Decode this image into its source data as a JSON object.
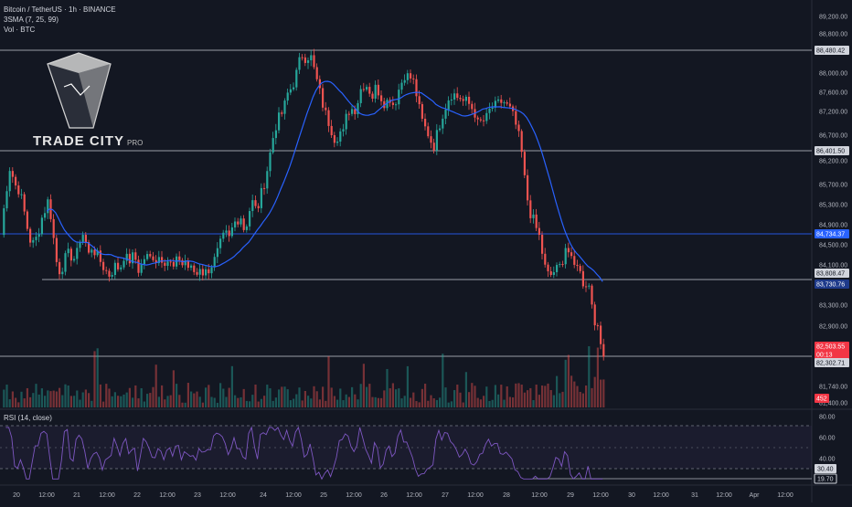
{
  "header": {
    "title": "Bitcoin / TetherUS · 1h · BINANCE",
    "indicator_sma": "3SMA (7, 25, 99)",
    "indicator_vol": "Vol · BTC",
    "rsi_label": "RSI (14, close)"
  },
  "logo": {
    "name": "TRADE CITY",
    "suffix": "PRO"
  },
  "colors": {
    "background": "#131722",
    "up": "#26a69a",
    "down": "#ef5350",
    "sma": "#2962ff",
    "rsi": "#7e57c2",
    "grid_text": "#b2b5be"
  },
  "price_axis": {
    "ticks": [
      "89,200.00",
      "88,800.00",
      "88,000.00",
      "87,600.00",
      "87,200.00",
      "86,700.00",
      "86,200.00",
      "85,700.00",
      "85,300.00",
      "84,900.00",
      "84,500.00",
      "84,100.00",
      "83,300.00",
      "82,900.00",
      "81,740.00",
      "81,400.00"
    ],
    "markers": [
      {
        "label": "88,480.42",
        "style": "gray",
        "price": 88480.42
      },
      {
        "label": "86,401.50",
        "style": "gray",
        "price": 86401.5
      },
      {
        "label": "84,734.37",
        "style": "blue",
        "price": 84734.37
      },
      {
        "label": "83,808.47",
        "style": "gray",
        "price": 83808.47
      },
      {
        "label": "83,730.76",
        "style": "navy",
        "price": 83730.76
      },
      {
        "label": "82,503.55",
        "style": "red",
        "price": 82503.55
      },
      {
        "label": "00:13",
        "style": "red-sub",
        "price": 82503.55
      },
      {
        "label": "82,302.71",
        "style": "gray",
        "price": 82302.71
      },
      {
        "label": "452",
        "style": "red",
        "price": null
      }
    ]
  },
  "rsi_axis": {
    "ticks": [
      "80.00",
      "60.00",
      "40.00"
    ],
    "markers": [
      {
        "label": "30.40",
        "style": "gray",
        "value": 30.4
      },
      {
        "label": "19.70",
        "style": "outline",
        "value": 19.7
      }
    ]
  },
  "time_axis": {
    "labels": [
      "20",
      "12:00",
      "21",
      "12:00",
      "22",
      "12:00",
      "23",
      "12:00",
      "24",
      "12:00",
      "25",
      "12:00",
      "26",
      "12:00",
      "27",
      "12:00",
      "28",
      "12:00",
      "29",
      "12:00",
      "30",
      "12:00",
      "31",
      "12:00",
      "Apr",
      "12:00"
    ]
  },
  "chart_data": {
    "type": "candlestick",
    "symbol": "Bitcoin / TetherUS",
    "interval": "1h",
    "ylim": [
      81400,
      89400
    ],
    "series": [
      {
        "name": "3SMA (7, 25, 99)"
      }
    ],
    "horizontal_levels": [
      88480.42,
      86401.5,
      84734.37,
      83808.47,
      82302.71
    ],
    "close_points": [
      [
        0,
        84700
      ],
      [
        5,
        85500
      ],
      [
        10,
        86100
      ],
      [
        15,
        85700
      ],
      [
        20,
        85600
      ],
      [
        25,
        85200
      ],
      [
        28,
        84900
      ],
      [
        32,
        84600
      ],
      [
        36,
        84500
      ],
      [
        40,
        84700
      ],
      [
        44,
        85000
      ],
      [
        48,
        85200
      ],
      [
        52,
        85400
      ],
      [
        56,
        84900
      ],
      [
        60,
        84200
      ],
      [
        64,
        84000
      ],
      [
        68,
        84100
      ],
      [
        72,
        84300
      ],
      [
        76,
        84300
      ],
      [
        82,
        84200
      ],
      [
        88,
        84800
      ],
      [
        92,
        84600
      ],
      [
        96,
        84300
      ],
      [
        100,
        84500
      ],
      [
        104,
        84300
      ],
      [
        108,
        84200
      ],
      [
        114,
        84000
      ],
      [
        118,
        83900
      ],
      [
        122,
        84000
      ],
      [
        126,
        84100
      ],
      [
        130,
        84000
      ],
      [
        134,
        84300
      ],
      [
        138,
        84200
      ],
      [
        142,
        84200
      ],
      [
        146,
        84300
      ],
      [
        150,
        84000
      ],
      [
        154,
        84100
      ],
      [
        158,
        84300
      ],
      [
        162,
        84200
      ],
      [
        166,
        84300
      ],
      [
        170,
        84200
      ],
      [
        174,
        84300
      ],
      [
        178,
        84200
      ],
      [
        182,
        84200
      ],
      [
        186,
        84100
      ],
      [
        190,
        84000
      ],
      [
        194,
        84300
      ],
      [
        198,
        84100
      ],
      [
        202,
        84200
      ],
      [
        206,
        84000
      ],
      [
        210,
        84000
      ],
      [
        214,
        83900
      ],
      [
        218,
        84100
      ],
      [
        222,
        83900
      ],
      [
        226,
        84000
      ],
      [
        230,
        84100
      ],
      [
        234,
        84200
      ],
      [
        238,
        84400
      ],
      [
        242,
        84600
      ],
      [
        246,
        84700
      ],
      [
        250,
        84600
      ],
      [
        254,
        84900
      ],
      [
        258,
        85000
      ],
      [
        262,
        85100
      ],
      [
        266,
        84800
      ],
      [
        270,
        85000
      ],
      [
        274,
        85400
      ],
      [
        278,
        85200
      ],
      [
        282,
        85300
      ],
      [
        286,
        85600
      ],
      [
        290,
        85900
      ],
      [
        294,
        86300
      ],
      [
        298,
        86700
      ],
      [
        302,
        87000
      ],
      [
        306,
        87100
      ],
      [
        310,
        87300
      ],
      [
        314,
        87600
      ],
      [
        318,
        87700
      ],
      [
        322,
        87900
      ],
      [
        326,
        88200
      ],
      [
        330,
        88400
      ],
      [
        334,
        88300
      ],
      [
        338,
        88400
      ],
      [
        342,
        88100
      ],
      [
        346,
        87800
      ],
      [
        350,
        87500
      ],
      [
        354,
        87200
      ],
      [
        358,
        87000
      ],
      [
        362,
        86800
      ],
      [
        366,
        86600
      ],
      [
        370,
        86800
      ],
      [
        374,
        86700
      ],
      [
        378,
        87100
      ],
      [
        382,
        87300
      ],
      [
        386,
        87200
      ],
      [
        390,
        87400
      ],
      [
        394,
        87700
      ],
      [
        398,
        87800
      ],
      [
        402,
        87700
      ],
      [
        406,
        87500
      ],
      [
        410,
        87700
      ],
      [
        414,
        87600
      ],
      [
        418,
        87400
      ],
      [
        422,
        87400
      ],
      [
        426,
        87500
      ],
      [
        430,
        87300
      ],
      [
        434,
        87600
      ],
      [
        438,
        87800
      ],
      [
        442,
        88000
      ],
      [
        446,
        87900
      ],
      [
        450,
        87900
      ],
      [
        454,
        87600
      ],
      [
        458,
        87200
      ],
      [
        462,
        86900
      ],
      [
        466,
        86800
      ],
      [
        470,
        86600
      ],
      [
        474,
        86500
      ],
      [
        478,
        86800
      ],
      [
        482,
        87100
      ],
      [
        486,
        87300
      ],
      [
        490,
        87500
      ],
      [
        494,
        87600
      ],
      [
        498,
        87500
      ],
      [
        502,
        87500
      ],
      [
        506,
        87400
      ],
      [
        510,
        87400
      ],
      [
        514,
        87300
      ],
      [
        518,
        87200
      ],
      [
        522,
        86900
      ],
      [
        526,
        87000
      ],
      [
        530,
        87000
      ],
      [
        534,
        87200
      ],
      [
        538,
        87300
      ],
      [
        542,
        87300
      ],
      [
        546,
        87400
      ],
      [
        550,
        87400
      ],
      [
        554,
        87300
      ],
      [
        558,
        87200
      ],
      [
        562,
        87000
      ],
      [
        566,
        86700
      ],
      [
        570,
        86300
      ],
      [
        574,
        85600
      ],
      [
        578,
        85200
      ],
      [
        582,
        85000
      ],
      [
        586,
        84800
      ],
      [
        590,
        84600
      ],
      [
        594,
        84100
      ],
      [
        598,
        83900
      ],
      [
        602,
        83900
      ],
      [
        606,
        84000
      ],
      [
        610,
        84000
      ],
      [
        614,
        84200
      ],
      [
        618,
        84500
      ],
      [
        622,
        84300
      ],
      [
        626,
        84000
      ],
      [
        630,
        84200
      ],
      [
        634,
        83900
      ],
      [
        638,
        83700
      ],
      [
        642,
        83800
      ],
      [
        646,
        83400
      ],
      [
        650,
        83000
      ],
      [
        654,
        82700
      ],
      [
        658,
        82400
      ],
      [
        662,
        82503.55
      ]
    ]
  }
}
